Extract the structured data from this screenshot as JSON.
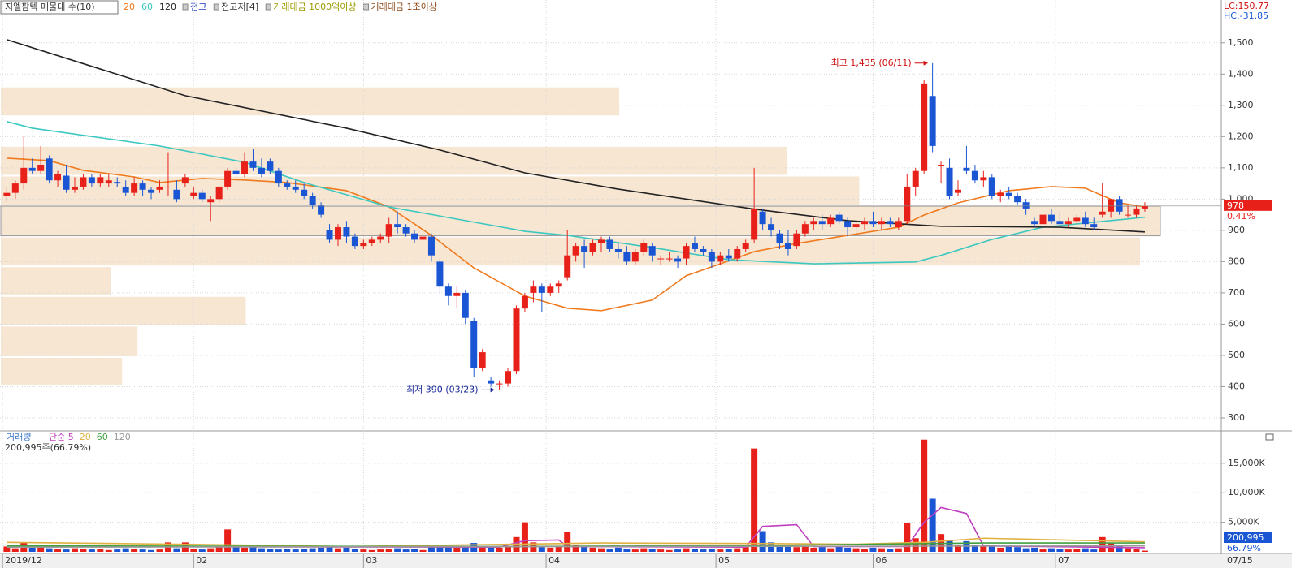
{
  "chart_data": {
    "type": "candlestick",
    "title": "지엘팜텍 매물대 수(10)",
    "indicators": [
      {
        "name": "전고",
        "color": "#1f3fbf"
      },
      {
        "name": "전고저[4]",
        "color": "#333333"
      },
      {
        "name": "거래대금 1000억이상",
        "color": "#9a9a00"
      },
      {
        "name": "거래대금 1조이상",
        "color": "#8b4513"
      }
    ],
    "up_color": "#e8201a",
    "down_color": "#1a56d4",
    "candles": [
      [
        1010,
        1040,
        990,
        1020
      ],
      [
        1020,
        1060,
        1000,
        1050
      ],
      [
        1050,
        1200,
        1030,
        1100
      ],
      [
        1100,
        1130,
        1080,
        1090
      ],
      [
        1090,
        1170,
        1080,
        1110
      ],
      [
        1130,
        1140,
        1050,
        1060
      ],
      [
        1060,
        1090,
        1040,
        1080
      ],
      [
        1075,
        1110,
        1020,
        1030
      ],
      [
        1030,
        1070,
        1020,
        1040
      ],
      [
        1040,
        1080,
        1030,
        1070
      ],
      [
        1070,
        1080,
        1040,
        1050
      ],
      [
        1050,
        1080,
        1040,
        1070
      ],
      [
        1050,
        1080,
        1040,
        1060
      ],
      [
        1055,
        1070,
        1040,
        1050
      ],
      [
        1040,
        1060,
        1010,
        1020
      ],
      [
        1020,
        1070,
        1010,
        1050
      ],
      [
        1050,
        1060,
        1010,
        1030
      ],
      [
        1030,
        1040,
        1000,
        1020
      ],
      [
        1030,
        1060,
        1020,
        1040
      ],
      [
        1040,
        1150,
        1010,
        1040
      ],
      [
        1030,
        1060,
        990,
        1000
      ],
      [
        1050,
        1080,
        1040,
        1070
      ],
      [
        1010,
        1040,
        1000,
        1020
      ],
      [
        1020,
        1030,
        990,
        1000
      ],
      [
        990,
        1010,
        930,
        1000
      ],
      [
        1000,
        1040,
        990,
        1040
      ],
      [
        1040,
        1100,
        1030,
        1090
      ],
      [
        1090,
        1100,
        1060,
        1080
      ],
      [
        1080,
        1150,
        1070,
        1120
      ],
      [
        1120,
        1160,
        1090,
        1100
      ],
      [
        1100,
        1130,
        1070,
        1080
      ],
      [
        1120,
        1130,
        1080,
        1090
      ],
      [
        1090,
        1100,
        1040,
        1050
      ],
      [
        1050,
        1060,
        1030,
        1040
      ],
      [
        1040,
        1060,
        1020,
        1030
      ],
      [
        1030,
        1050,
        1000,
        1010
      ],
      [
        1010,
        1020,
        970,
        980
      ],
      [
        980,
        990,
        940,
        950
      ],
      [
        900,
        920,
        860,
        870
      ],
      [
        870,
        920,
        850,
        910
      ],
      [
        910,
        930,
        860,
        880
      ],
      [
        880,
        890,
        840,
        850
      ],
      [
        850,
        870,
        840,
        860
      ],
      [
        860,
        880,
        850,
        870
      ],
      [
        870,
        890,
        860,
        880
      ],
      [
        880,
        940,
        860,
        920
      ],
      [
        920,
        960,
        890,
        910
      ],
      [
        910,
        920,
        880,
        890
      ],
      [
        890,
        900,
        860,
        870
      ],
      [
        870,
        890,
        860,
        880
      ],
      [
        880,
        890,
        800,
        820
      ],
      [
        800,
        810,
        700,
        720
      ],
      [
        720,
        730,
        660,
        690
      ],
      [
        690,
        720,
        650,
        700
      ],
      [
        700,
        710,
        600,
        620
      ],
      [
        610,
        620,
        430,
        460
      ],
      [
        460,
        520,
        450,
        510
      ],
      [
        420,
        430,
        400,
        410
      ],
      [
        410,
        420,
        390,
        410
      ],
      [
        410,
        460,
        400,
        450
      ],
      [
        450,
        660,
        440,
        650
      ],
      [
        650,
        700,
        640,
        690
      ],
      [
        700,
        740,
        670,
        720
      ],
      [
        720,
        730,
        640,
        700
      ],
      [
        700,
        730,
        690,
        720
      ],
      [
        720,
        740,
        700,
        730
      ],
      [
        750,
        900,
        740,
        820
      ],
      [
        820,
        860,
        800,
        850
      ],
      [
        850,
        870,
        780,
        830
      ],
      [
        830,
        870,
        820,
        860
      ],
      [
        860,
        880,
        830,
        870
      ],
      [
        870,
        880,
        830,
        840
      ],
      [
        840,
        860,
        810,
        830
      ],
      [
        830,
        850,
        790,
        800
      ],
      [
        800,
        840,
        790,
        830
      ],
      [
        830,
        870,
        820,
        860
      ],
      [
        850,
        860,
        800,
        820
      ],
      [
        810,
        820,
        790,
        810
      ],
      [
        810,
        830,
        800,
        810
      ],
      [
        810,
        820,
        780,
        800
      ],
      [
        810,
        860,
        790,
        850
      ],
      [
        860,
        880,
        830,
        840
      ],
      [
        840,
        850,
        820,
        830
      ],
      [
        830,
        840,
        780,
        800
      ],
      [
        800,
        830,
        790,
        820
      ],
      [
        820,
        840,
        800,
        810
      ],
      [
        810,
        850,
        800,
        840
      ],
      [
        840,
        870,
        830,
        860
      ],
      [
        870,
        1100,
        860,
        970
      ],
      [
        960,
        970,
        900,
        920
      ],
      [
        920,
        940,
        880,
        900
      ],
      [
        890,
        900,
        840,
        860
      ],
      [
        860,
        900,
        820,
        840
      ],
      [
        850,
        900,
        840,
        890
      ],
      [
        890,
        930,
        880,
        920
      ],
      [
        920,
        940,
        900,
        930
      ],
      [
        930,
        950,
        900,
        920
      ],
      [
        920,
        950,
        910,
        940
      ],
      [
        950,
        960,
        920,
        930
      ],
      [
        930,
        940,
        880,
        910
      ],
      [
        910,
        930,
        890,
        920
      ],
      [
        920,
        940,
        900,
        930
      ],
      [
        930,
        960,
        910,
        920
      ],
      [
        920,
        940,
        900,
        930
      ],
      [
        930,
        940,
        910,
        920
      ],
      [
        910,
        940,
        900,
        930
      ],
      [
        930,
        1080,
        920,
        1040
      ],
      [
        1040,
        1100,
        1010,
        1090
      ],
      [
        1090,
        1380,
        1080,
        1370
      ],
      [
        1330,
        1435,
        1150,
        1170
      ],
      [
        1110,
        1120,
        1050,
        1110
      ],
      [
        1100,
        1130,
        1000,
        1010
      ],
      [
        1020,
        1060,
        1010,
        1030
      ],
      [
        1100,
        1170,
        1080,
        1090
      ],
      [
        1090,
        1110,
        1050,
        1060
      ],
      [
        1060,
        1090,
        1040,
        1070
      ],
      [
        1070,
        1080,
        1000,
        1010
      ],
      [
        1010,
        1030,
        990,
        1020
      ],
      [
        1020,
        1040,
        1000,
        1010
      ],
      [
        1010,
        1020,
        980,
        990
      ],
      [
        990,
        1000,
        950,
        970
      ],
      [
        930,
        940,
        910,
        920
      ],
      [
        920,
        960,
        910,
        950
      ],
      [
        950,
        970,
        920,
        930
      ],
      [
        930,
        960,
        910,
        920
      ],
      [
        920,
        940,
        910,
        930
      ],
      [
        930,
        950,
        920,
        940
      ],
      [
        940,
        960,
        910,
        920
      ],
      [
        920,
        940,
        900,
        910
      ],
      [
        950,
        1050,
        940,
        960
      ],
      [
        960,
        1000,
        940,
        1000
      ],
      [
        1000,
        1010,
        950,
        960
      ],
      [
        950,
        980,
        940,
        950
      ],
      [
        950,
        980,
        940,
        970
      ],
      [
        970,
        990,
        960,
        978
      ]
    ],
    "series": [
      {
        "name": "20",
        "color": "#f07a1e",
        "x": [
          0,
          5,
          9,
          15,
          18,
          23,
          28,
          33,
          40,
          45,
          50,
          55,
          61,
          66,
          70,
          76,
          80,
          84,
          88,
          93,
          99,
          105,
          108,
          112,
          118,
          123,
          127,
          131,
          134
        ],
        "values": [
          1131,
          1123,
          1092,
          1071,
          1053,
          1066,
          1061,
          1053,
          1027,
          975,
          884,
          780,
          690,
          651,
          643,
          677,
          755,
          793,
          832,
          858,
          884,
          910,
          949,
          988,
          1027,
          1040,
          1035,
          988,
          975
        ]
      },
      {
        "name": "60",
        "color": "#3cc8c0",
        "x": [
          0,
          3,
          18,
          28,
          35,
          45,
          53,
          61,
          66,
          76,
          85,
          95,
          107,
          110,
          116,
          122,
          134
        ],
        "values": [
          1248,
          1227,
          1170,
          1118,
          1053,
          975,
          936,
          897,
          884,
          845,
          806,
          793,
          799,
          820,
          871,
          910,
          942
        ]
      },
      {
        "name": "120",
        "color": "#222222",
        "x": [
          0,
          21,
          40,
          51,
          61,
          72,
          88,
          99,
          110,
          124,
          134
        ],
        "values": [
          1510,
          1331,
          1227,
          1157,
          1084,
          1032,
          968,
          931,
          913,
          910,
          895
        ]
      }
    ],
    "ylim": [
      261,
      1637
    ],
    "yticks": [
      300,
      400,
      500,
      600,
      700,
      800,
      900,
      {
        "value": 1000,
        "label": "1,000"
      },
      {
        "value": 1100,
        "label": "1,100"
      },
      {
        "value": 1200,
        "label": "1,200"
      },
      {
        "value": 1300,
        "label": "1,300"
      },
      {
        "value": 1400,
        "label": "1,400"
      },
      {
        "value": 1500,
        "label": "1,500"
      }
    ],
    "xlim": [
      -0.8,
      143
    ],
    "xticks": [
      {
        "value": -0.5,
        "label": "2019/12"
      },
      {
        "value": 22,
        "label": "02"
      },
      {
        "value": 42,
        "label": "03"
      },
      {
        "value": 63.5,
        "label": "04"
      },
      {
        "value": 83.5,
        "label": "05"
      },
      {
        "value": 102,
        "label": "06"
      },
      {
        "value": 123.5,
        "label": "07"
      }
    ],
    "current_date": "07/15",
    "grid": true,
    "annotations": [
      {
        "text": "최고 1,435 (06/11)",
        "x": 109,
        "y": 1435,
        "color": "#d01010"
      },
      {
        "text": "최저 390 (03/23)",
        "x": 58,
        "y": 390,
        "color": "#1a2a9a"
      }
    ],
    "volume_profile": {
      "bins": [
        404,
        495,
        595,
        690,
        785,
        880,
        980,
        1075,
        1170,
        1265,
        1360
      ],
      "values": [
        149,
        168,
        301,
        135,
        1400,
        1425,
        1055,
        966,
        0,
        760
      ],
      "color": "#f7e6d2"
    },
    "right_labels": {
      "lc": "LC:150.77",
      "hc": "HC:-31.85",
      "last_price": 978,
      "change": {
        "value": 0.41,
        "label": "0.41%"
      }
    },
    "volume": {
      "title": "거래량",
      "summary": "200,995주(66.79%)",
      "values": [
        900,
        600,
        1500,
        700,
        800,
        600,
        500,
        400,
        600,
        500,
        400,
        500,
        300,
        400,
        600,
        500,
        400,
        300,
        400,
        1600,
        600,
        1600,
        500,
        400,
        600,
        900,
        3800,
        900,
        700,
        1200,
        600,
        500,
        400,
        500,
        400,
        500,
        600,
        700,
        900,
        600,
        700,
        500,
        400,
        300,
        400,
        500,
        600,
        400,
        500,
        300,
        800,
        1200,
        900,
        700,
        800,
        1500,
        900,
        800,
        700,
        900,
        2500,
        5000,
        1600,
        800,
        700,
        900,
        3400,
        1200,
        800,
        700,
        600,
        500,
        700,
        500,
        400,
        600,
        500,
        400,
        300,
        400,
        600,
        500,
        400,
        500,
        400,
        500,
        600,
        800,
        17500,
        3500,
        1600,
        900,
        1200,
        800,
        900,
        700,
        800,
        600,
        900,
        700,
        600,
        500,
        700,
        600,
        500,
        600,
        4900,
        2300,
        19000,
        9000,
        3000,
        2000,
        1200,
        1800,
        1100,
        900,
        1000,
        700,
        900,
        800,
        600,
        700,
        500,
        600,
        500,
        400,
        500,
        600,
        400,
        2500,
        1500,
        900,
        600,
        500,
        201
      ],
      "ylim": [
        0,
        20200
      ],
      "yticks": [
        {
          "value": 5000,
          "label": "5,000K"
        },
        {
          "value": 10000,
          "label": "10,000K"
        },
        {
          "value": 15000,
          "label": "15,000K"
        }
      ],
      "series": [
        {
          "name": "단순 5",
          "color": "#c040c0",
          "x": [
            0,
            58,
            61,
            65,
            66,
            87,
            89,
            93,
            95,
            106,
            108,
            110,
            113,
            115,
            134
          ],
          "values": [
            900,
            800,
            1900,
            2000,
            900,
            800,
            4300,
            4600,
            900,
            900,
            5000,
            7500,
            6500,
            1000,
            700
          ]
        },
        {
          "name": "20",
          "color": "#e0b040",
          "x": [
            0,
            20,
            40,
            60,
            70,
            90,
            100,
            108,
            115,
            134
          ],
          "values": [
            1600,
            1300,
            900,
            1300,
            1500,
            1400,
            1300,
            1600,
            2300,
            1700
          ]
        },
        {
          "name": "60",
          "color": "#40a040",
          "x": [
            0,
            60,
            90,
            115,
            134
          ],
          "values": [
            1000,
            900,
            1100,
            1500,
            1500
          ]
        },
        {
          "name": "120",
          "color": "#999999",
          "x": [
            0,
            134
          ],
          "values": [
            800,
            1000
          ]
        }
      ],
      "last": {
        "value": 200995,
        "label": "200,995"
      },
      "ratio": {
        "value": 66.79,
        "label": "66.79%"
      }
    }
  }
}
